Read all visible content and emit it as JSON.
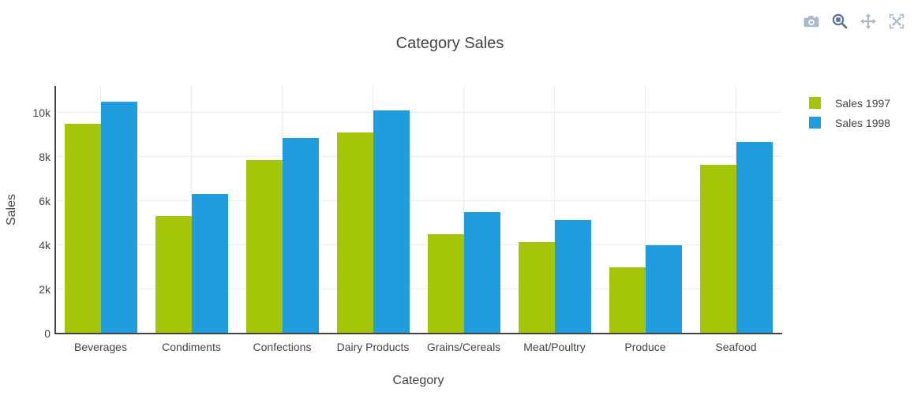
{
  "chart_data": {
    "type": "bar",
    "bar_mode": "group",
    "title": "Category Sales",
    "xlabel": "Category",
    "ylabel": "Sales",
    "categories": [
      "Beverages",
      "Condiments",
      "Confections",
      "Dairy Products",
      "Grains/Cereals",
      "Meat/Poultry",
      "Produce",
      "Seafood"
    ],
    "series": [
      {
        "name": "Sales 1997",
        "color": "#a5c608",
        "values": [
          9500,
          5300,
          7850,
          9100,
          4500,
          4150,
          3000,
          7650
        ]
      },
      {
        "name": "Sales 1998",
        "color": "#1f9dde",
        "values": [
          10500,
          6300,
          8850,
          10100,
          5500,
          5150,
          4000,
          8650
        ]
      }
    ],
    "ylim": [
      0,
      11200
    ],
    "yticks": {
      "values": [
        0,
        2000,
        4000,
        6000,
        8000,
        10000
      ],
      "labels": [
        "0",
        "2k",
        "4k",
        "6k",
        "8k",
        "10k"
      ]
    },
    "grid": true,
    "legend_position": "right"
  },
  "legend": {
    "items": [
      "Sales 1997",
      "Sales 1998"
    ]
  },
  "modebar": {
    "active": "zoom",
    "buttons": [
      {
        "icon": "camera-icon"
      },
      {
        "icon": "zoom-icon"
      },
      {
        "icon": "pan-icon"
      },
      {
        "icon": "autoscale-icon"
      }
    ]
  },
  "colors": {
    "axis_line": "#444444",
    "grid_line": "#ebeef0",
    "text": "#444444",
    "background": "#ffffff",
    "modebar_inactive": "#a9b8cc",
    "modebar_active": "#5f7397"
  }
}
